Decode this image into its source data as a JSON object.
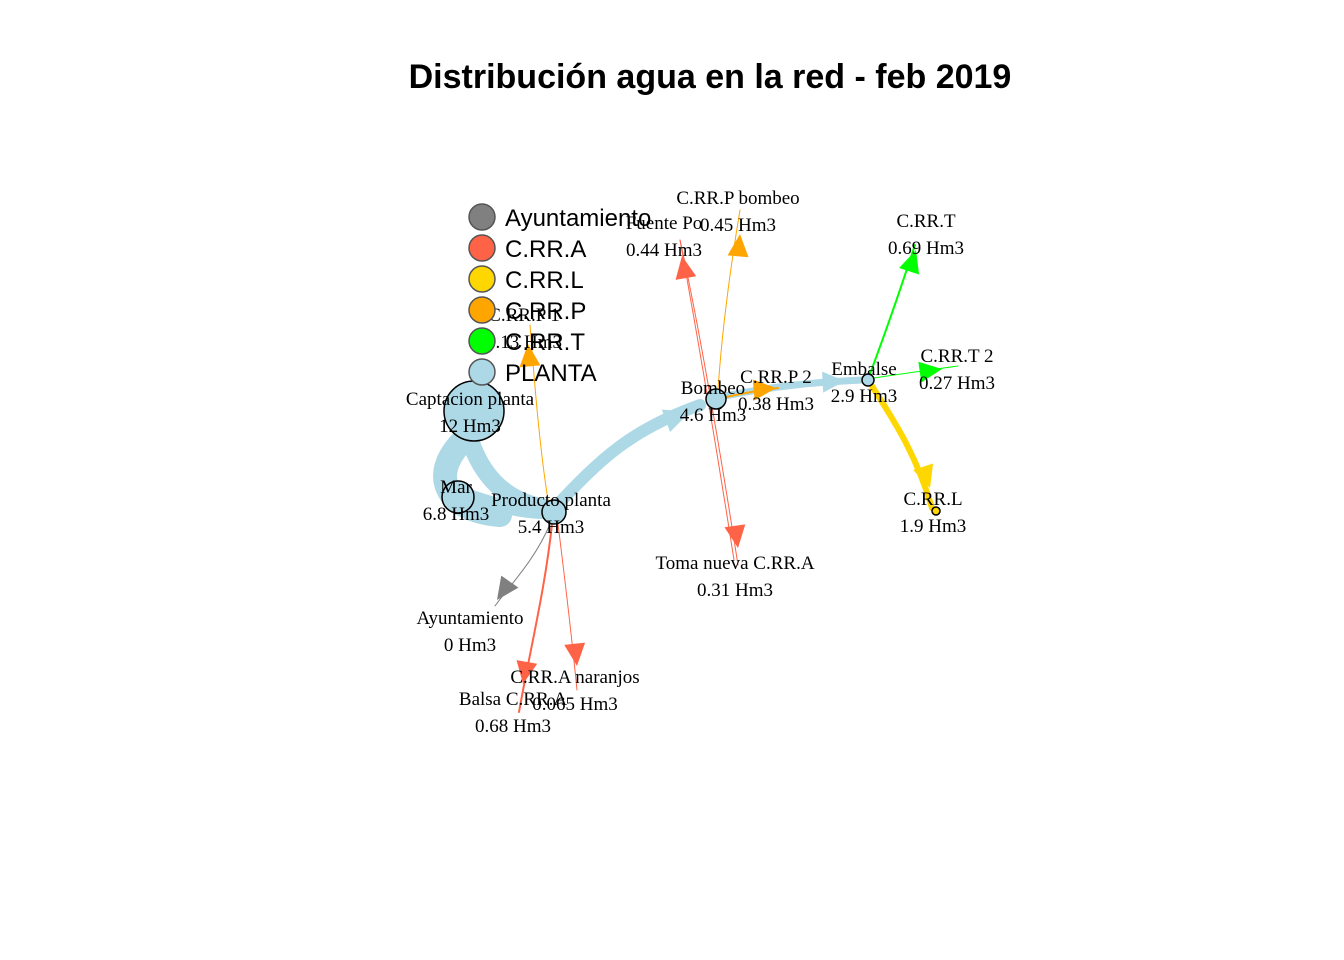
{
  "title": "Distribución agua en la red - feb 2019",
  "colors": {
    "Ayuntamiento": "#808080",
    "C.RR.A": "#FF6347",
    "C.RR.L": "#FFD700",
    "C.RR.P": "#FFA500",
    "C.RR.T": "#00FF00",
    "PLANTA": "#ADD8E6"
  },
  "legend": [
    "Ayuntamiento",
    "C.RR.A",
    "C.RR.L",
    "C.RR.P",
    "C.RR.T",
    "PLANTA"
  ],
  "nodes": [
    {
      "id": "captacion",
      "name": "Captacion planta",
      "value": "12 Hm3",
      "group": "PLANTA"
    },
    {
      "id": "mar",
      "name": "Mar",
      "value": "6.8 Hm3",
      "group": "PLANTA"
    },
    {
      "id": "producto",
      "name": "Producto planta",
      "value": "5.4 Hm3",
      "group": "PLANTA"
    },
    {
      "id": "bombeo",
      "name": "Bombeo",
      "value": "4.6 Hm3",
      "group": "PLANTA"
    },
    {
      "id": "embalse",
      "name": "Embalse",
      "value": "2.9 Hm3",
      "group": "PLANTA"
    },
    {
      "id": "crrl",
      "name": "C.RR.L",
      "value": "1.9 Hm3",
      "group": "C.RR.L"
    },
    {
      "id": "crrt",
      "name": "C.RR.T",
      "value": "0.69 Hm3",
      "group": "C.RR.T"
    },
    {
      "id": "crrt2",
      "name": "C.RR.T 2",
      "value": "0.27 Hm3",
      "group": "C.RR.T"
    },
    {
      "id": "crrp2",
      "name": "C.RR.P 2",
      "value": "0.38 Hm3",
      "group": "C.RR.P"
    },
    {
      "id": "crrpbombeo",
      "name": "C.RR.P bombeo",
      "value": "0.45 Hm3",
      "group": "C.RR.P"
    },
    {
      "id": "fuentepo",
      "name": "Fuente Po",
      "value": "0.44 Hm3",
      "group": "C.RR.A"
    },
    {
      "id": "tomanueva",
      "name": "Toma nueva C.RR.A",
      "value": "0.31 Hm3",
      "group": "C.RR.A"
    },
    {
      "id": "crrp1",
      "name": "C.RR.P 1",
      "value": "0.13 Hm3",
      "group": "C.RR.P"
    },
    {
      "id": "ayto",
      "name": "Ayuntamiento",
      "value": "0 Hm3",
      "group": "Ayuntamiento"
    },
    {
      "id": "naranjos",
      "name": "C.RR.A naranjos",
      "value": "0.065 Hm3",
      "group": "C.RR.A"
    },
    {
      "id": "balsa",
      "name": "Balsa C.RR.A",
      "value": "0.68 Hm3",
      "group": "C.RR.A"
    }
  ],
  "edges": [
    {
      "from": "captacion",
      "to": "mar",
      "group": "PLANTA"
    },
    {
      "from": "captacion",
      "to": "producto",
      "group": "PLANTA"
    },
    {
      "from": "mar",
      "to": "producto",
      "group": "PLANTA"
    },
    {
      "from": "producto",
      "to": "bombeo",
      "group": "PLANTA"
    },
    {
      "from": "bombeo",
      "to": "embalse",
      "group": "PLANTA"
    },
    {
      "from": "embalse",
      "to": "crrl",
      "group": "C.RR.L"
    },
    {
      "from": "embalse",
      "to": "crrt",
      "group": "C.RR.T"
    },
    {
      "from": "embalse",
      "to": "crrt2",
      "group": "C.RR.T"
    },
    {
      "from": "bombeo",
      "to": "crrp2",
      "group": "C.RR.P"
    },
    {
      "from": "bombeo",
      "to": "crrpbombeo",
      "group": "C.RR.P"
    },
    {
      "from": "tomanueva",
      "to": "fuentepo",
      "group": "C.RR.A"
    },
    {
      "from": "fuentepo",
      "to": "tomanueva",
      "group": "C.RR.A"
    },
    {
      "from": "producto",
      "to": "crrp1",
      "group": "C.RR.P"
    },
    {
      "from": "producto",
      "to": "ayto",
      "group": "Ayuntamiento"
    },
    {
      "from": "producto",
      "to": "naranjos",
      "group": "C.RR.A"
    },
    {
      "from": "producto",
      "to": "balsa",
      "group": "C.RR.A"
    }
  ]
}
